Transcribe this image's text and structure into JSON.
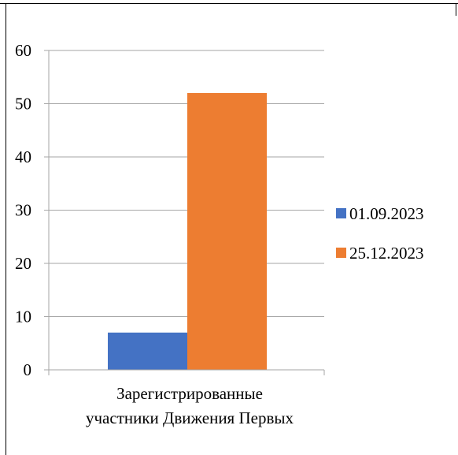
{
  "chart_data": {
    "type": "bar",
    "categories": [
      "Зарегистрированные участники Движения Первых"
    ],
    "category_lines": [
      [
        "Зарегистрированные",
        "участники Движения Первых"
      ]
    ],
    "series": [
      {
        "name": "01.09.2023",
        "values": [
          7
        ],
        "color": "#4472c4"
      },
      {
        "name": "25.12.2023",
        "values": [
          52
        ],
        "color": "#ed7d31"
      }
    ],
    "ylim": [
      0,
      60
    ],
    "yticks": [
      0,
      10,
      20,
      30,
      40,
      50,
      60
    ],
    "grid": true,
    "legend": "right"
  }
}
